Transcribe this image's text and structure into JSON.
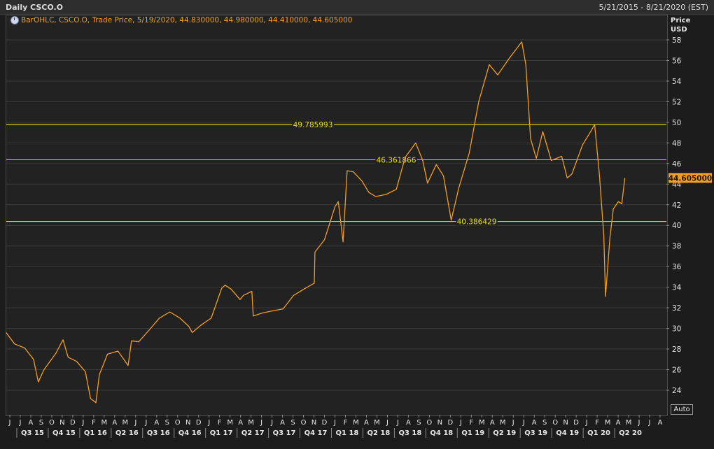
{
  "window": {
    "title": "Daily CSCO.O",
    "date_range": "5/21/2015 - 8/21/2020 (EST)"
  },
  "legend": {
    "text": "BarOHLC, CSCO.O, Trade Price, 5/19/2020, 44.830000, 44.980000, 44.410000, 44.605000",
    "icon": "clock-icon"
  },
  "axis": {
    "price_label": "Price",
    "currency_label": "USD",
    "auto_label": "Auto"
  },
  "colors": {
    "line": "#f39c24",
    "hline": "#e8e000",
    "grid": "#3a3a3a",
    "current_price_bg": "#f39c24"
  },
  "chart_data": {
    "type": "line",
    "title": "Daily CSCO.O",
    "ylabel": "Price USD",
    "ylim": [
      22,
      59
    ],
    "yticks": [
      24,
      26,
      28,
      30,
      32,
      34,
      36,
      38,
      40,
      42,
      44,
      46,
      48,
      50,
      52,
      54,
      56,
      58
    ],
    "month_labels": [
      "J",
      "J",
      "A",
      "S",
      "O",
      "N",
      "D",
      "J",
      "F",
      "M",
      "A",
      "M",
      "J",
      "J",
      "A",
      "S",
      "O",
      "N",
      "D",
      "J",
      "F",
      "M",
      "A",
      "M",
      "J",
      "J",
      "A",
      "S",
      "O",
      "N",
      "D",
      "J",
      "F",
      "M",
      "A",
      "M",
      "J",
      "J",
      "A",
      "S",
      "O",
      "N",
      "D",
      "J",
      "F",
      "M",
      "A",
      "M",
      "J",
      "J",
      "A",
      "S",
      "O",
      "N",
      "D",
      "J",
      "F",
      "M",
      "A",
      "M",
      "J",
      "J",
      "A"
    ],
    "quarter_labels": [
      "Q3 15",
      "Q4 15",
      "Q1 16",
      "Q2 16",
      "Q3 16",
      "Q4 16",
      "Q1 17",
      "Q2 17",
      "Q3 17",
      "Q4 17",
      "Q1 18",
      "Q2 18",
      "Q3 18",
      "Q4 18",
      "Q1 19",
      "Q2 19",
      "Q3 19",
      "Q4 19",
      "Q1 20",
      "Q2 20"
    ],
    "horizontal_lines": [
      {
        "value": 49.785993,
        "label": "49.785993"
      },
      {
        "value": 46.361866,
        "label": "46.361866"
      },
      {
        "value": 40.386429,
        "label": "40.386429"
      }
    ],
    "current_price": {
      "value": 44.605,
      "label": "44.605000"
    },
    "series": [
      {
        "x": [
          "2015-05-21",
          "2015-06-15",
          "2015-07-15",
          "2015-08-10",
          "2015-08-24",
          "2015-09-10",
          "2015-10-15",
          "2015-11-05",
          "2015-11-20",
          "2015-12-15",
          "2016-01-10",
          "2016-01-25",
          "2016-02-10",
          "2016-02-20",
          "2016-03-15",
          "2016-04-15",
          "2016-05-15",
          "2016-05-25",
          "2016-06-15",
          "2016-07-15",
          "2016-08-15",
          "2016-09-15",
          "2016-10-15",
          "2016-11-10",
          "2016-11-20",
          "2016-12-15",
          "2017-01-15",
          "2017-02-15",
          "2017-02-25",
          "2017-03-15",
          "2017-04-10",
          "2017-04-20",
          "2017-05-15",
          "2017-05-19",
          "2017-06-15",
          "2017-07-15",
          "2017-08-15",
          "2017-09-15",
          "2017-10-15",
          "2017-11-15",
          "2017-11-17",
          "2017-12-15",
          "2018-01-15",
          "2018-01-25",
          "2018-02-08",
          "2018-02-20",
          "2018-03-10",
          "2018-04-05",
          "2018-04-25",
          "2018-05-15",
          "2018-06-15",
          "2018-07-15",
          "2018-08-10",
          "2018-09-10",
          "2018-10-01",
          "2018-10-15",
          "2018-11-10",
          "2018-12-01",
          "2018-12-24",
          "2019-01-15",
          "2019-02-15",
          "2019-03-15",
          "2019-04-15",
          "2019-05-10",
          "2019-06-15",
          "2019-07-20",
          "2019-08-01",
          "2019-08-15",
          "2019-09-01",
          "2019-09-20",
          "2019-10-15",
          "2019-11-15",
          "2019-12-01",
          "2019-12-15",
          "2020-01-15",
          "2020-02-10",
          "2020-02-20",
          "2020-03-05",
          "2020-03-18",
          "2020-03-23",
          "2020-04-05",
          "2020-04-15",
          "2020-04-30",
          "2020-05-10",
          "2020-05-19"
        ],
        "y": [
          29.6,
          28.5,
          28.1,
          27.0,
          24.8,
          26.0,
          27.6,
          28.9,
          27.2,
          26.8,
          25.8,
          23.2,
          22.8,
          25.5,
          27.5,
          27.8,
          26.4,
          28.8,
          28.7,
          29.8,
          31.0,
          31.6,
          31.0,
          30.2,
          29.6,
          30.3,
          31.0,
          33.9,
          34.2,
          33.8,
          32.8,
          33.2,
          33.6,
          31.2,
          31.5,
          31.7,
          31.9,
          33.2,
          33.8,
          34.4,
          37.4,
          38.6,
          41.8,
          42.3,
          38.4,
          45.3,
          45.2,
          44.3,
          43.2,
          42.8,
          43.0,
          43.5,
          46.6,
          48.0,
          46.3,
          44.1,
          45.9,
          44.8,
          40.5,
          43.6,
          47.0,
          52.0,
          55.6,
          54.6,
          56.3,
          57.8,
          55.6,
          48.4,
          46.5,
          49.1,
          46.3,
          46.7,
          44.6,
          45.0,
          47.8,
          49.2,
          49.8,
          44.9,
          39.0,
          33.1,
          38.8,
          41.6,
          42.3,
          42.1,
          44.6
        ]
      }
    ]
  }
}
